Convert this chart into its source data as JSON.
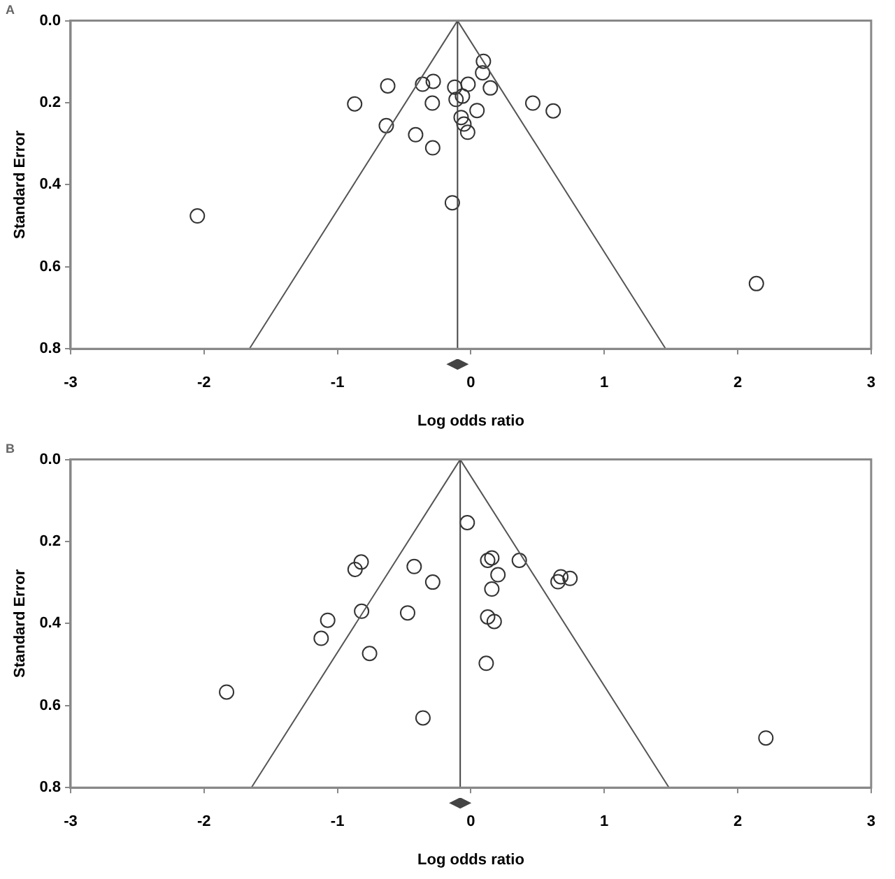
{
  "chart_data": [
    {
      "type": "scatter",
      "title": "A",
      "xlabel": "Log odds ratio",
      "ylabel": "Standard Error",
      "xlim": [
        -3,
        3
      ],
      "ylim": [
        0.8,
        0
      ],
      "xticks": [
        -3,
        -2,
        -1,
        0,
        1,
        2,
        3
      ],
      "yticks": [
        {
          "value": 0,
          "label": "0.0"
        },
        0.2,
        0.4,
        0.6,
        0.8
      ],
      "grid": false,
      "legend": false,
      "marker": "circle",
      "ref_lines": [
        {
          "axis": "x",
          "value": -0.1,
          "color": "#444444"
        }
      ],
      "series": [
        {
          "type": "line",
          "marker": "none",
          "color": "#555555",
          "x": [
            -1.66,
            -0.1,
            1.46
          ],
          "values": [
            0.8,
            0,
            0.8
          ]
        },
        {
          "type": "scatter",
          "color": "#333333",
          "x": [
            0.094,
            0.088,
            -0.623,
            -0.362,
            -0.282,
            -0.121,
            -0.021,
            0.146,
            -0.871,
            -0.289,
            -0.111,
            -0.063,
            0.046,
            0.464,
            0.617,
            -0.634,
            -0.073,
            -0.052,
            -0.024,
            -0.414,
            -0.286,
            -0.139,
            -2.05,
            2.14
          ],
          "values": [
            0.099,
            0.127,
            0.159,
            0.155,
            0.148,
            0.162,
            0.155,
            0.164,
            0.203,
            0.201,
            0.192,
            0.184,
            0.219,
            0.201,
            0.22,
            0.256,
            0.236,
            0.252,
            0.272,
            0.278,
            0.31,
            0.444,
            0.476,
            0.641
          ]
        }
      ]
    },
    {
      "type": "scatter",
      "title": "B",
      "xlabel": "Log odds ratio",
      "ylabel": "Standard Error",
      "xlim": [
        -3,
        3
      ],
      "ylim": [
        0.8,
        0
      ],
      "xticks": [
        -3,
        -2,
        -1,
        0,
        1,
        2,
        3
      ],
      "yticks": [
        {
          "value": 0,
          "label": "0.0"
        },
        0.2,
        0.4,
        0.6,
        0.8
      ],
      "grid": false,
      "legend": false,
      "marker": "circle",
      "ref_lines": [
        {
          "axis": "x",
          "value": -0.08,
          "color": "#444444"
        }
      ],
      "series": [
        {
          "type": "line",
          "marker": "none",
          "color": "#555555",
          "x": [
            -1.645,
            -0.08,
            1.485
          ],
          "values": [
            0.8,
            0,
            0.8
          ]
        },
        {
          "type": "scatter",
          "color": "#333333",
          "x": [
            -0.027,
            -0.822,
            -0.868,
            -0.425,
            -0.286,
            0.126,
            0.157,
            0.363,
            0.203,
            0.157,
            0.674,
            0.653,
            0.743,
            -0.819,
            -0.474,
            -1.073,
            -1.122,
            -0.759,
            0.126,
            0.175,
            0.115,
            -1.831,
            -0.359,
            2.211
          ],
          "values": [
            0.154,
            0.25,
            0.268,
            0.261,
            0.299,
            0.246,
            0.24,
            0.246,
            0.281,
            0.316,
            0.286,
            0.298,
            0.29,
            0.37,
            0.374,
            0.392,
            0.436,
            0.473,
            0.384,
            0.395,
            0.497,
            0.567,
            0.63,
            0.679
          ]
        }
      ]
    }
  ]
}
